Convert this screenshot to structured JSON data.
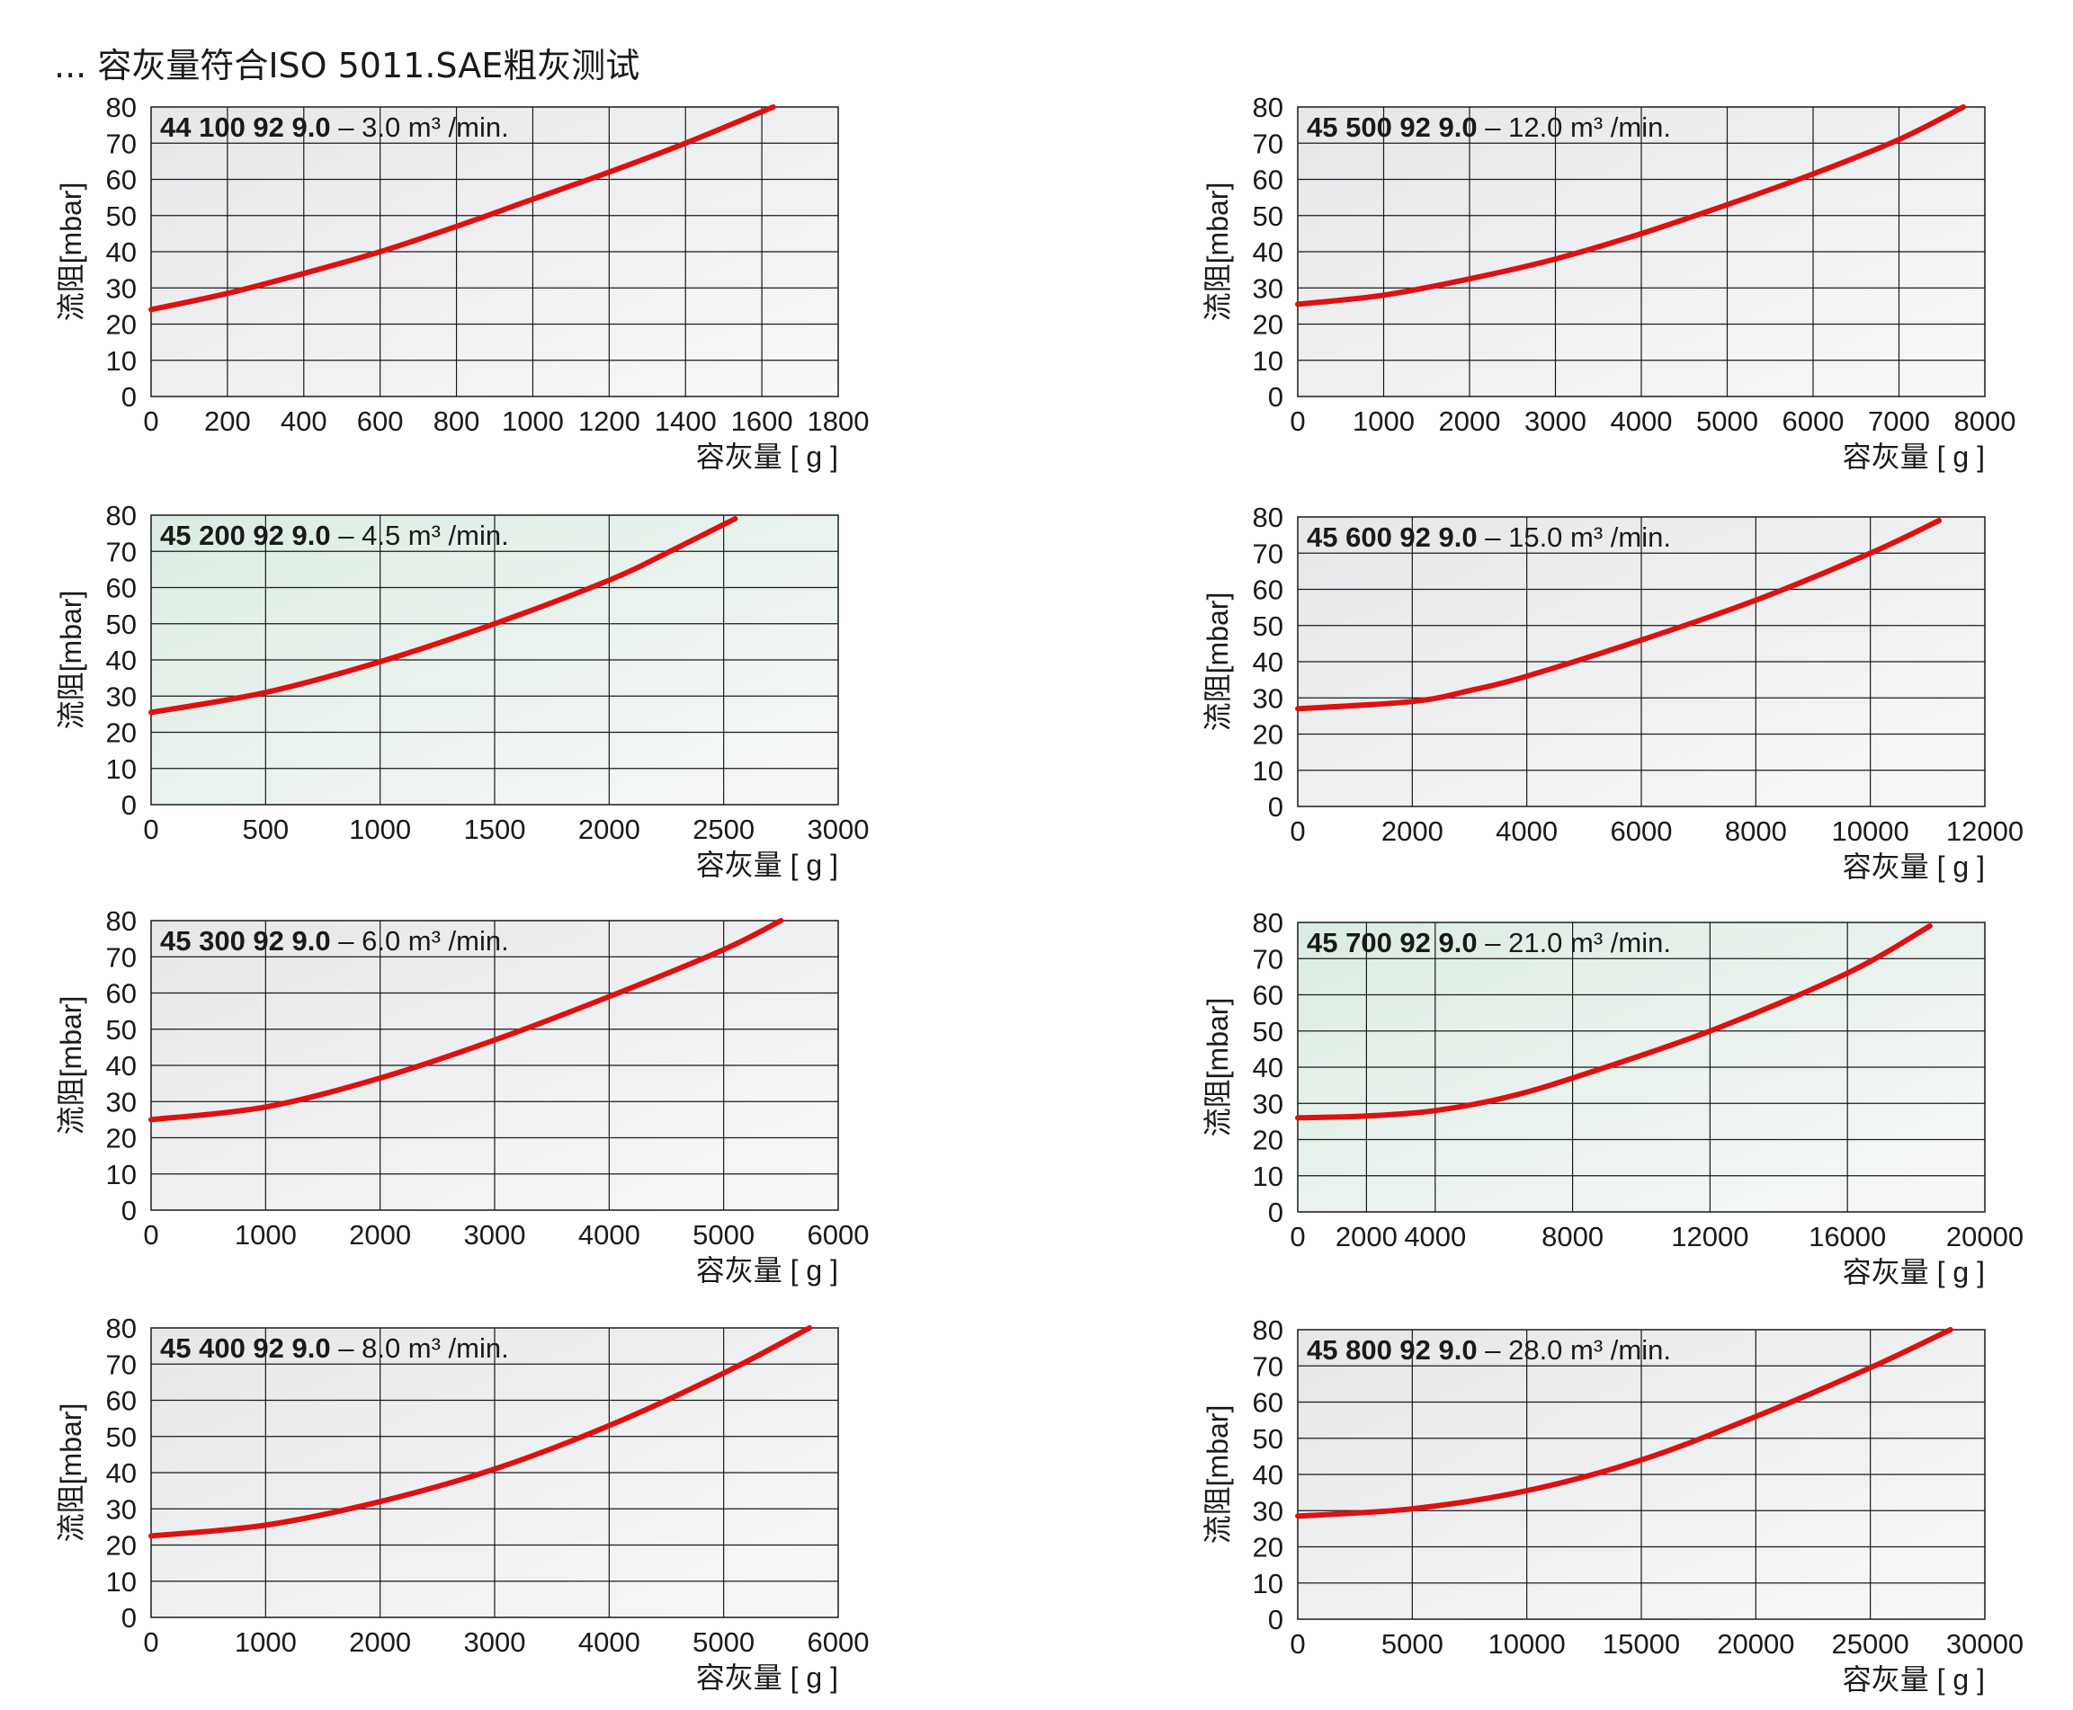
{
  "title": "... 容灰量符合ISO 5011.SAE粗灰测试",
  "colors": {
    "curve": "#dd1111",
    "grid": "#1a1a1a",
    "plot_bg_gray": "#e6e7e9",
    "plot_bg_green": "#dcece2"
  },
  "chart_data": [
    {
      "type": "line",
      "model": "44 100 92 9.0",
      "flow": "– 3.0 m³ /min.",
      "xlabel": "容灰量 [ g ]",
      "ylabel": "流阻[mbar]",
      "xlim": [
        0,
        1800
      ],
      "ylim": [
        0,
        80
      ],
      "xticks": [
        "0",
        "200",
        "400",
        "600",
        "800",
        "1000",
        "1200",
        "1400",
        "1600",
        "1800"
      ],
      "yticks": [
        "0",
        "10",
        "20",
        "30",
        "40",
        "50",
        "60",
        "70",
        "80"
      ],
      "bg": "gray",
      "series": [
        {
          "x": [
            0,
            200,
            400,
            600,
            800,
            1000,
            1200,
            1400,
            1630
          ],
          "y": [
            24,
            28.5,
            34,
            40,
            47,
            54.5,
            62,
            70,
            80
          ]
        }
      ]
    },
    {
      "type": "line",
      "model": "45 500 92 9.0",
      "flow": "– 12.0 m³ /min.",
      "xlabel": "容灰量 [ g ]",
      "ylabel": "流阻[mbar]",
      "xlim": [
        0,
        8000
      ],
      "ylim": [
        0,
        80
      ],
      "xticks": [
        "0",
        "1000",
        "2000",
        "3000",
        "4000",
        "5000",
        "6000",
        "7000",
        "8000"
      ],
      "yticks": [
        "0",
        "10",
        "20",
        "30",
        "40",
        "50",
        "60",
        "70",
        "80"
      ],
      "bg": "gray",
      "series": [
        {
          "x": [
            0,
            1000,
            2000,
            3000,
            4000,
            5000,
            6000,
            7000,
            7750
          ],
          "y": [
            25.5,
            28,
            32.5,
            38,
            45,
            53,
            61.5,
            71,
            80
          ]
        }
      ]
    },
    {
      "type": "line",
      "model": "45 200 92 9.0",
      "flow": "– 4.5 m³ /min.",
      "xlabel": "容灰量 [ g ]",
      "ylabel": "流阻[mbar]",
      "xlim": [
        0,
        3000
      ],
      "ylim": [
        0,
        80
      ],
      "xticks": [
        "0",
        "500",
        "1000",
        "1500",
        "2000",
        "2500",
        "3000"
      ],
      "yticks": [
        "0",
        "10",
        "20",
        "30",
        "40",
        "50",
        "60",
        "70",
        "80"
      ],
      "bg": "green",
      "series": [
        {
          "x": [
            0,
            500,
            1000,
            1500,
            2000,
            2250,
            2550
          ],
          "y": [
            25.5,
            31,
            39.5,
            50,
            62,
            69.5,
            79
          ]
        }
      ]
    },
    {
      "type": "line",
      "model": "45 600 92 9.0",
      "flow": "– 15.0 m³ /min.",
      "xlabel": "容灰量 [ g ]",
      "ylabel": "流阻[mbar]",
      "xlim": [
        0,
        12000
      ],
      "ylim": [
        0,
        80
      ],
      "xticks": [
        "0",
        "2000",
        "4000",
        "6000",
        "8000",
        "10000",
        "12000"
      ],
      "yticks": [
        "0",
        "10",
        "20",
        "30",
        "40",
        "50",
        "60",
        "70",
        "80"
      ],
      "bg": "gray",
      "series": [
        {
          "x": [
            0,
            2000,
            3000,
            4000,
            6000,
            8000,
            10000,
            11200
          ],
          "y": [
            27,
            29,
            32,
            36,
            46,
            57,
            70,
            79
          ]
        }
      ]
    },
    {
      "type": "line",
      "model": "45 300 92 9.0",
      "flow": "– 6.0 m³ /min.",
      "xlabel": "容灰量 [ g ]",
      "ylabel": "流阻[mbar]",
      "xlim": [
        0,
        6000
      ],
      "ylim": [
        0,
        80
      ],
      "xticks": [
        "0",
        "1000",
        "2000",
        "3000",
        "4000",
        "5000",
        "6000"
      ],
      "yticks": [
        "0",
        "10",
        "20",
        "30",
        "40",
        "50",
        "60",
        "70",
        "80"
      ],
      "bg": "gray",
      "series": [
        {
          "x": [
            0,
            1000,
            2000,
            3000,
            4000,
            5000,
            5500
          ],
          "y": [
            25,
            28.5,
            36.5,
            47,
            59,
            72,
            80
          ]
        }
      ]
    },
    {
      "type": "line",
      "model": "45 700 92 9.0",
      "flow": "– 21.0 m³ /min.",
      "xlabel": "容灰量 [ g ]",
      "ylabel": "流阻[mbar]",
      "xlim": [
        0,
        20000
      ],
      "ylim": [
        0,
        80
      ],
      "xticks": [
        "0",
        "2000",
        "4000",
        "8000",
        "12000",
        "16000",
        "20000"
      ],
      "yticks": [
        "0",
        "10",
        "20",
        "30",
        "40",
        "50",
        "60",
        "70",
        "80"
      ],
      "bg": "green",
      "series": [
        {
          "x": [
            0,
            2000,
            4000,
            6000,
            8000,
            12000,
            16000,
            18400
          ],
          "y": [
            26,
            26.5,
            28,
            31.5,
            37,
            50,
            66,
            79
          ]
        }
      ]
    },
    {
      "type": "line",
      "model": "45 400 92 9.0",
      "flow": "– 8.0 m³ /min.",
      "xlabel": "容灰量 [ g ]",
      "ylabel": "流阻[mbar]",
      "xlim": [
        0,
        6000
      ],
      "ylim": [
        0,
        80
      ],
      "xticks": [
        "0",
        "1000",
        "2000",
        "3000",
        "4000",
        "5000",
        "6000"
      ],
      "yticks": [
        "0",
        "10",
        "20",
        "30",
        "40",
        "50",
        "60",
        "70",
        "80"
      ],
      "bg": "gray",
      "series": [
        {
          "x": [
            0,
            1000,
            2000,
            3000,
            4000,
            5000,
            5750
          ],
          "y": [
            22.5,
            25.5,
            32,
            41,
            53,
            67.5,
            80
          ]
        }
      ]
    },
    {
      "type": "line",
      "model": "45 800 92 9.0",
      "flow": "– 28.0 m³ /min.",
      "xlabel": "容灰量 [ g ]",
      "ylabel": "流阻[mbar]",
      "xlim": [
        0,
        30000
      ],
      "ylim": [
        0,
        80
      ],
      "xticks": [
        "0",
        "5000",
        "10000",
        "15000",
        "20000",
        "25000",
        "30000"
      ],
      "yticks": [
        "0",
        "10",
        "20",
        "30",
        "40",
        "50",
        "60",
        "70",
        "80"
      ],
      "bg": "gray",
      "series": [
        {
          "x": [
            0,
            5000,
            10000,
            15000,
            20000,
            25000,
            28500
          ],
          "y": [
            28.5,
            30.5,
            35.5,
            44,
            56,
            69.5,
            80
          ]
        }
      ]
    }
  ]
}
